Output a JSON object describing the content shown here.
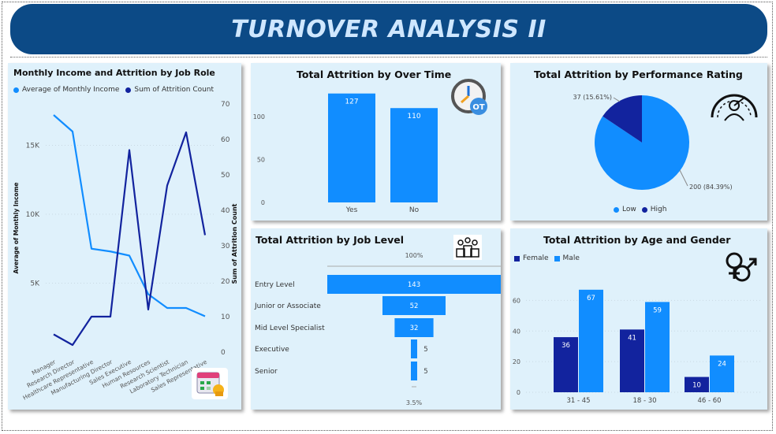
{
  "banner": {
    "title": "TURNOVER ANALYSIS II"
  },
  "colors": {
    "light": "#118dff",
    "dark": "#12239e",
    "banner": "#0c4a86",
    "panel": "#dff1fb"
  },
  "panels": {
    "job_role": {
      "title": "Monthly Income and Attrition by Job Role",
      "legend": [
        "Average of Monthly Income",
        "Sum of Attrition Count"
      ],
      "icon": "calendar-icon"
    },
    "over_time": {
      "title": "Total Attrition by Over Time",
      "icon": "clock-ot-icon"
    },
    "performance": {
      "title": "Total Attrition by Performance Rating",
      "icon": "gauge-person-icon"
    },
    "job_level": {
      "title": "Total Attrition by Job Level",
      "icon": "team-podium-icon",
      "top_pct": "100%",
      "bottom_pct": "3.5%"
    },
    "age_gender": {
      "title": "Total Attrition by Age and Gender",
      "icon": "gender-icon"
    }
  },
  "chart_data": [
    {
      "type": "line",
      "title": "Monthly Income and Attrition by Job Role",
      "categories": [
        "Manager",
        "Research Director",
        "Healthcare Representative",
        "Manufacturing Director",
        "Sales Executive",
        "Human Resources",
        "Research Scientist",
        "Laboratory Technician",
        "Sales Representative"
      ],
      "series": [
        {
          "name": "Average of Monthly Income",
          "axis": "left",
          "values": [
            17200,
            16000,
            7500,
            7300,
            7000,
            4200,
            3200,
            3200,
            2600
          ]
        },
        {
          "name": "Sum of Attrition Count",
          "axis": "right",
          "values": [
            5,
            2,
            10,
            10,
            57,
            12,
            47,
            62,
            33
          ]
        }
      ],
      "ylabel": "Average of Monthly Income",
      "y2label": "Sum of Attrition Count",
      "ylim": [
        0,
        18000
      ],
      "yticks": [
        5000,
        10000,
        15000
      ],
      "yticklabels": [
        "5K",
        "10K",
        "15K"
      ],
      "y2lim": [
        0,
        70
      ],
      "y2ticks": [
        0,
        10,
        20,
        30,
        40,
        50,
        60,
        70
      ],
      "legend_position": "top"
    },
    {
      "type": "bar",
      "title": "Total Attrition by Over Time",
      "categories": [
        "Yes",
        "No"
      ],
      "values": [
        127,
        110
      ],
      "ylim": [
        0,
        135
      ],
      "yticks": [
        0,
        50,
        100
      ]
    },
    {
      "type": "pie",
      "title": "Total Attrition by Performance Rating",
      "labels": [
        "Low",
        "High"
      ],
      "values": [
        200,
        37
      ],
      "data_labels": [
        "200 (84.39%)",
        "37 (15.61%)"
      ],
      "legend_position": "bottom"
    },
    {
      "type": "bar",
      "orientation": "funnel",
      "title": "Total Attrition by Job Level",
      "categories": [
        "Entry Level",
        "Junior or Associate",
        "Mid Level Specialist",
        "Executive",
        "Senior"
      ],
      "values": [
        143,
        52,
        32,
        5,
        5
      ]
    },
    {
      "type": "bar",
      "title": "Total Attrition by Age and Gender",
      "categories": [
        "31 - 45",
        "18 - 30",
        "46 - 60"
      ],
      "series": [
        {
          "name": "Female",
          "values": [
            36,
            41,
            10
          ]
        },
        {
          "name": "Male",
          "values": [
            67,
            59,
            24
          ]
        }
      ],
      "ylim": [
        0,
        70
      ],
      "yticks": [
        0,
        20,
        40,
        60
      ],
      "legend_position": "top-left"
    }
  ]
}
